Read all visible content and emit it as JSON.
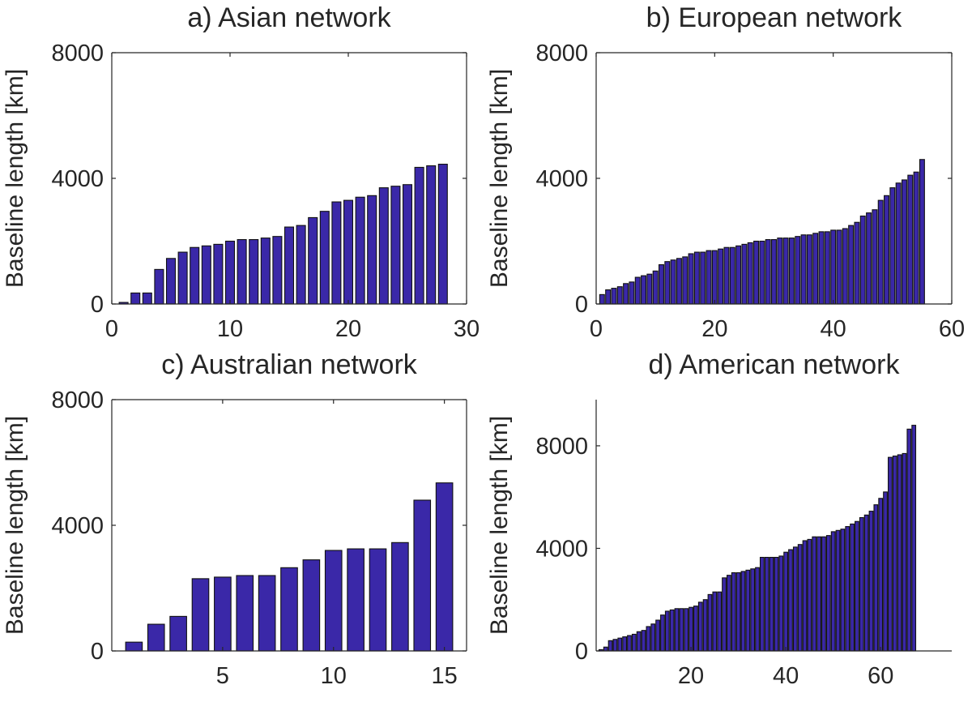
{
  "colors": {
    "bar_fill": "#3A28A8",
    "bar_edge": "#111111",
    "axis": "#262626"
  },
  "chart_data": [
    {
      "type": "bar",
      "title": "a) Asian network",
      "xlabel": "",
      "ylabel": "Baseline length [km]",
      "xlim": [
        0,
        30
      ],
      "ylim": [
        0,
        8000
      ],
      "xticks": [
        0,
        10,
        20,
        30
      ],
      "xtick_labels": [
        "0",
        "10",
        "20",
        "30"
      ],
      "yticks": [
        0,
        4000,
        8000
      ],
      "ytick_labels": [
        "0",
        "4000",
        "8000"
      ],
      "x": [
        1,
        2,
        3,
        4,
        5,
        6,
        7,
        8,
        9,
        10,
        11,
        12,
        13,
        14,
        15,
        16,
        17,
        18,
        19,
        20,
        21,
        22,
        23,
        24,
        25,
        26,
        27,
        28
      ],
      "values": [
        50,
        350,
        350,
        1100,
        1450,
        1650,
        1800,
        1850,
        1900,
        2000,
        2050,
        2050,
        2100,
        2150,
        2450,
        2500,
        2750,
        2950,
        3250,
        3300,
        3400,
        3450,
        3700,
        3750,
        3800,
        4350,
        4400,
        4450
      ]
    },
    {
      "type": "bar",
      "title": "b) European network",
      "xlabel": "",
      "ylabel": "Baseline length [km]",
      "xlim": [
        0,
        60
      ],
      "ylim": [
        0,
        8000
      ],
      "xticks": [
        0,
        20,
        40,
        60
      ],
      "xtick_labels": [
        "0",
        "20",
        "40",
        "60"
      ],
      "yticks": [
        0,
        4000,
        8000
      ],
      "ytick_labels": [
        "0",
        "4000",
        "8000"
      ],
      "x": [
        1,
        2,
        3,
        4,
        5,
        6,
        7,
        8,
        9,
        10,
        11,
        12,
        13,
        14,
        15,
        16,
        17,
        18,
        19,
        20,
        21,
        22,
        23,
        24,
        25,
        26,
        27,
        28,
        29,
        30,
        31,
        32,
        33,
        34,
        35,
        36,
        37,
        38,
        39,
        40,
        41,
        42,
        43,
        44,
        45,
        46,
        47,
        48,
        49,
        50,
        51,
        52,
        53,
        54,
        55
      ],
      "values": [
        300,
        450,
        500,
        550,
        650,
        700,
        850,
        900,
        950,
        1050,
        1250,
        1350,
        1400,
        1450,
        1500,
        1600,
        1650,
        1650,
        1700,
        1700,
        1750,
        1800,
        1800,
        1850,
        1900,
        1950,
        2000,
        2000,
        2050,
        2050,
        2100,
        2100,
        2100,
        2150,
        2200,
        2200,
        2250,
        2300,
        2300,
        2350,
        2350,
        2400,
        2500,
        2600,
        2800,
        2900,
        3000,
        3300,
        3450,
        3700,
        3850,
        3950,
        4100,
        4200,
        4600
      ]
    },
    {
      "type": "bar",
      "title": "c) Australian network",
      "xlabel": "",
      "ylabel": "Baseline length [km]",
      "xlim": [
        0,
        16
      ],
      "ylim": [
        0,
        8000
      ],
      "xticks": [
        5,
        10,
        15
      ],
      "xtick_labels": [
        "5",
        "10",
        "15"
      ],
      "yticks": [
        0,
        4000,
        8000
      ],
      "ytick_labels": [
        "0",
        "4000",
        "8000"
      ],
      "x": [
        1,
        2,
        3,
        4,
        5,
        6,
        7,
        8,
        9,
        10,
        11,
        12,
        13,
        14,
        15
      ],
      "values": [
        280,
        850,
        1100,
        2300,
        2350,
        2400,
        2400,
        2650,
        2900,
        3200,
        3250,
        3250,
        3450,
        4800,
        5350
      ]
    },
    {
      "type": "bar",
      "title": "d) American network",
      "xlabel": "",
      "ylabel": "Baseline length [km]",
      "xlim": [
        0,
        75
      ],
      "ylim": [
        0,
        9800
      ],
      "xticks": [
        20,
        40,
        60
      ],
      "xtick_labels": [
        "20",
        "40",
        "60"
      ],
      "yticks": [
        0,
        4000,
        8000
      ],
      "ytick_labels": [
        "0",
        "4000",
        "8000"
      ],
      "x": [
        1,
        2,
        3,
        4,
        5,
        6,
        7,
        8,
        9,
        10,
        11,
        12,
        13,
        14,
        15,
        16,
        17,
        18,
        19,
        20,
        21,
        22,
        23,
        24,
        25,
        26,
        27,
        28,
        29,
        30,
        31,
        32,
        33,
        34,
        35,
        36,
        37,
        38,
        39,
        40,
        41,
        42,
        43,
        44,
        45,
        46,
        47,
        48,
        49,
        50,
        51,
        52,
        53,
        54,
        55,
        56,
        57,
        58,
        59,
        60,
        61,
        62,
        63,
        64,
        65,
        66,
        67
      ],
      "values": [
        50,
        150,
        400,
        450,
        500,
        550,
        600,
        650,
        750,
        800,
        950,
        1050,
        1200,
        1400,
        1550,
        1600,
        1650,
        1650,
        1650,
        1700,
        1750,
        1900,
        2000,
        2200,
        2300,
        2300,
        2850,
        2950,
        3050,
        3050,
        3100,
        3150,
        3200,
        3250,
        3650,
        3650,
        3650,
        3650,
        3700,
        3850,
        3950,
        4050,
        4150,
        4300,
        4350,
        4450,
        4450,
        4450,
        4500,
        4650,
        4700,
        4750,
        4850,
        4950,
        5050,
        5200,
        5300,
        5450,
        5700,
        5950,
        6200,
        7550,
        7600,
        7650,
        7700,
        8650,
        8800
      ]
    }
  ]
}
